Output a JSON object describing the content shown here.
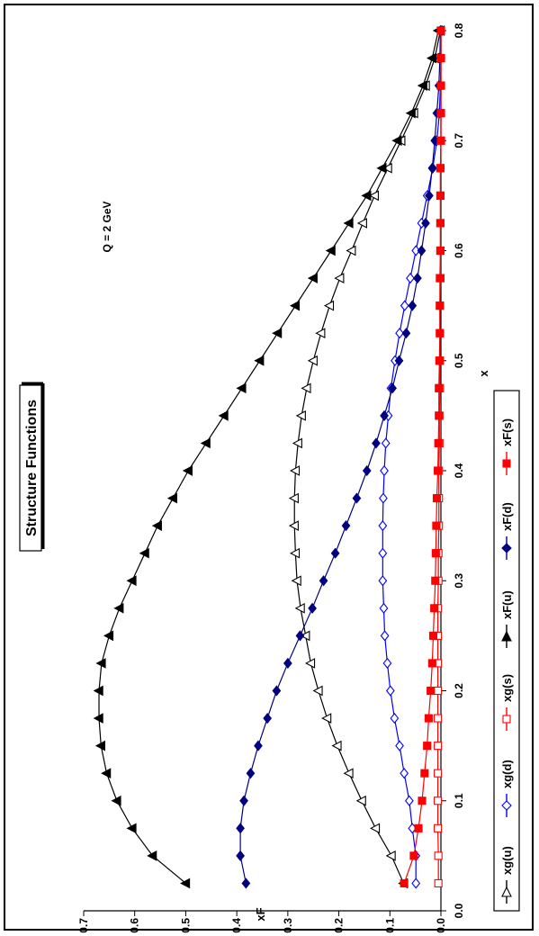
{
  "chart_data": {
    "type": "line",
    "title": "Structure Functions",
    "annotation": "Q = 2 GeV",
    "xlabel": "x",
    "ylabel": "xF",
    "xlim": [
      0.0,
      0.8
    ],
    "ylim": [
      0.0,
      0.7
    ],
    "xticks": [
      "0.0",
      "0.1",
      "0.2",
      "0.3",
      "0.4",
      "0.5",
      "0.6",
      "0.7",
      "0.8"
    ],
    "yticks": [
      "0.0",
      "0.1",
      "0.2",
      "0.3",
      "0.4",
      "0.5",
      "0.6",
      "0.7"
    ],
    "grid": false,
    "legend_position": "bottom",
    "orientation": "rotated 90 degrees counter-clockwise",
    "x": [
      0.025,
      0.05,
      0.075,
      0.1,
      0.125,
      0.15,
      0.175,
      0.2,
      0.225,
      0.25,
      0.275,
      0.3,
      0.325,
      0.35,
      0.375,
      0.4,
      0.425,
      0.45,
      0.475,
      0.5,
      0.525,
      0.55,
      0.575,
      0.6,
      0.625,
      0.65,
      0.675,
      0.7,
      0.725,
      0.75,
      0.775,
      0.8
    ],
    "series": [
      {
        "name": "xg(u)",
        "color": "#000000",
        "marker": "triangle-open",
        "values": [
          0.073,
          0.097,
          0.128,
          0.155,
          0.18,
          0.203,
          0.223,
          0.24,
          0.255,
          0.265,
          0.275,
          0.282,
          0.285,
          0.287,
          0.287,
          0.285,
          0.28,
          0.273,
          0.263,
          0.25,
          0.235,
          0.218,
          0.198,
          0.175,
          0.153,
          0.13,
          0.104,
          0.078,
          0.053,
          0.03,
          0.012,
          0.001
        ]
      },
      {
        "name": "xg(d)",
        "color": "#0000ff",
        "marker": "diamond-open",
        "values": [
          0.049,
          0.049,
          0.056,
          0.062,
          0.072,
          0.081,
          0.091,
          0.099,
          0.105,
          0.11,
          0.112,
          0.114,
          0.114,
          0.114,
          0.113,
          0.111,
          0.108,
          0.103,
          0.098,
          0.09,
          0.081,
          0.071,
          0.06,
          0.049,
          0.038,
          0.027,
          0.016,
          0.008,
          0.003,
          0.001,
          0.0,
          0.0
        ]
      },
      {
        "name": "xg(s)",
        "color": "#ff0000",
        "marker": "square-open",
        "values": [
          0.005,
          0.005,
          0.006,
          0.006,
          0.006,
          0.006,
          0.006,
          0.006,
          0.006,
          0.006,
          0.006,
          0.005,
          0.005,
          0.004,
          0.004,
          0.004,
          0.003,
          0.003,
          0.002,
          0.002,
          0.002,
          0.002,
          0.001,
          0.001,
          0.001,
          0.001,
          0.001,
          0.0,
          0.0,
          0.0,
          0.0,
          0.0
        ]
      },
      {
        "name": "xF(u)",
        "color": "#000000",
        "marker": "triangle-filled",
        "values": [
          0.5,
          0.565,
          0.605,
          0.635,
          0.655,
          0.666,
          0.67,
          0.67,
          0.665,
          0.65,
          0.63,
          0.605,
          0.58,
          0.555,
          0.525,
          0.495,
          0.46,
          0.425,
          0.39,
          0.355,
          0.32,
          0.285,
          0.25,
          0.215,
          0.18,
          0.145,
          0.115,
          0.085,
          0.058,
          0.035,
          0.017,
          0.005
        ]
      },
      {
        "name": "xF(d)",
        "color": "#000080",
        "marker": "diamond-filled",
        "values": [
          0.382,
          0.393,
          0.393,
          0.386,
          0.373,
          0.358,
          0.34,
          0.322,
          0.3,
          0.276,
          0.252,
          0.23,
          0.207,
          0.186,
          0.165,
          0.145,
          0.127,
          0.111,
          0.095,
          0.082,
          0.068,
          0.056,
          0.046,
          0.038,
          0.03,
          0.023,
          0.017,
          0.012,
          0.008,
          0.004,
          0.002,
          0.001
        ]
      },
      {
        "name": "xF(s)",
        "color": "#ff0000",
        "marker": "square-filled",
        "values": [
          0.072,
          0.053,
          0.044,
          0.037,
          0.032,
          0.027,
          0.024,
          0.02,
          0.017,
          0.015,
          0.013,
          0.011,
          0.01,
          0.009,
          0.008,
          0.006,
          0.005,
          0.004,
          0.004,
          0.003,
          0.002,
          0.002,
          0.002,
          0.001,
          0.001,
          0.001,
          0.001,
          0.0,
          0.0,
          0.0,
          0.0,
          0.0
        ]
      }
    ]
  }
}
